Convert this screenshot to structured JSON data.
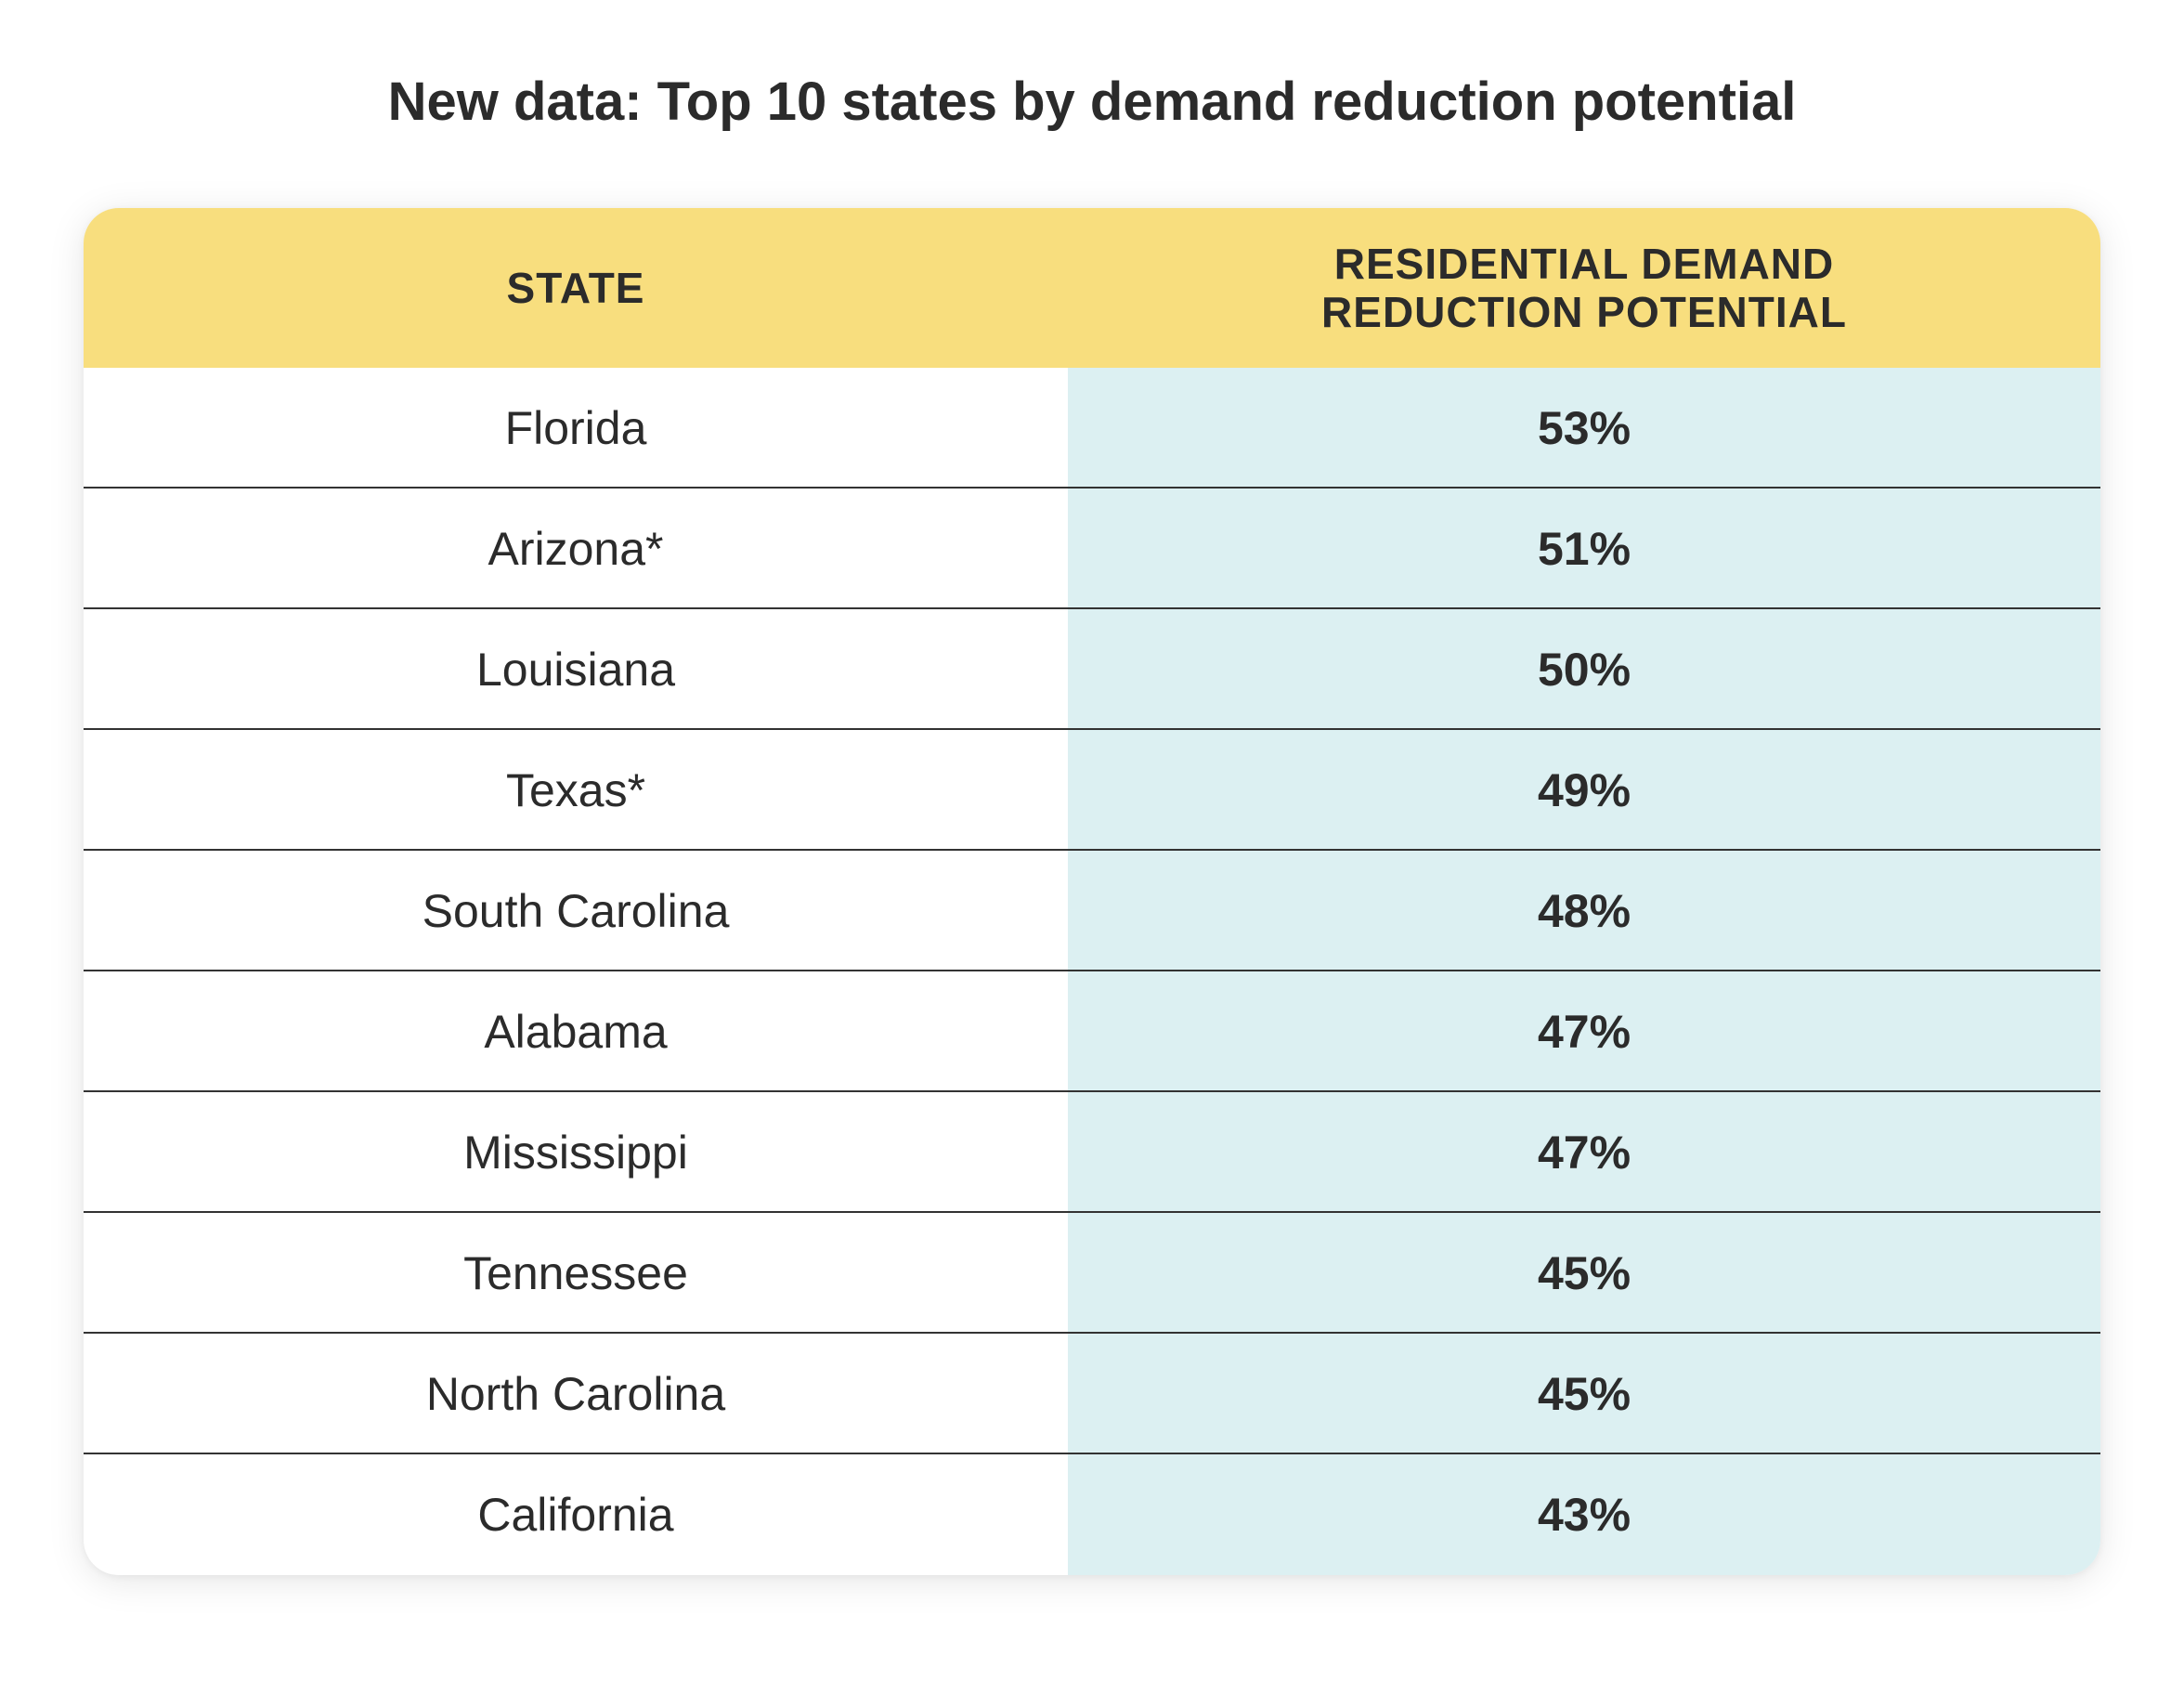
{
  "title": "New data: Top 10 states by demand reduction potential",
  "colors": {
    "header_bg": "#f8de7e",
    "value_column_bg": "#dcf0f2",
    "text": "#2b2b2b"
  },
  "chart_data": {
    "type": "table",
    "title": "New data: Top 10 states by demand reduction potential",
    "columns": [
      "STATE",
      "RESIDENTIAL DEMAND REDUCTION POTENTIAL"
    ],
    "column_lines": {
      "state": [
        "STATE"
      ],
      "value": [
        "RESIDENTIAL DEMAND",
        "REDUCTION POTENTIAL"
      ]
    },
    "rows": [
      {
        "state": "Florida",
        "value": "53%"
      },
      {
        "state": "Arizona*",
        "value": "51%"
      },
      {
        "state": "Louisiana",
        "value": "50%"
      },
      {
        "state": "Texas*",
        "value": "49%"
      },
      {
        "state": "South Carolina",
        "value": "48%"
      },
      {
        "state": "Alabama",
        "value": "47%"
      },
      {
        "state": "Mississippi",
        "value": "47%"
      },
      {
        "state": "Tennessee",
        "value": "45%"
      },
      {
        "state": "North Carolina",
        "value": "45%"
      },
      {
        "state": "California",
        "value": "43%"
      }
    ]
  }
}
